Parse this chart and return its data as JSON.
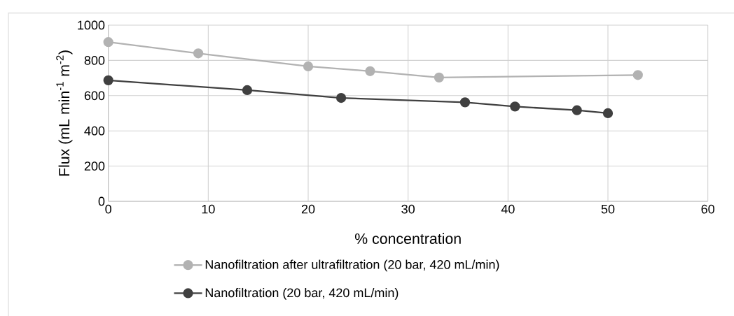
{
  "chart_data": {
    "type": "line",
    "xlabel": "% concentration",
    "ylabel": "Flux (mL min$^{-1}$ m$^{-2}$)",
    "xlim": [
      0,
      60
    ],
    "xticks": [
      0,
      10,
      20,
      30,
      40,
      50,
      60
    ],
    "ylim": [
      0,
      1000
    ],
    "yticks": [
      0,
      200,
      400,
      600,
      800,
      1000
    ],
    "grid": true,
    "legend": "bottom",
    "marker": "circle",
    "line_style": "solid",
    "series": [
      {
        "name": "Nanofiltration after ultrafiltration (20 bar, 420 mL/min)",
        "color": "#b2b2b2",
        "x": [
          0,
          9,
          20,
          26.2,
          33.1,
          53
        ],
        "values": [
          904,
          840,
          766,
          739,
          703,
          717
        ]
      },
      {
        "name": "Nanofiltration (20 bar, 420 mL/min)",
        "color": "#404040",
        "x": [
          0,
          13.9,
          23.3,
          35.7,
          40.7,
          46.9,
          50
        ],
        "values": [
          687,
          631,
          587,
          562,
          538,
          517,
          500
        ]
      }
    ]
  }
}
